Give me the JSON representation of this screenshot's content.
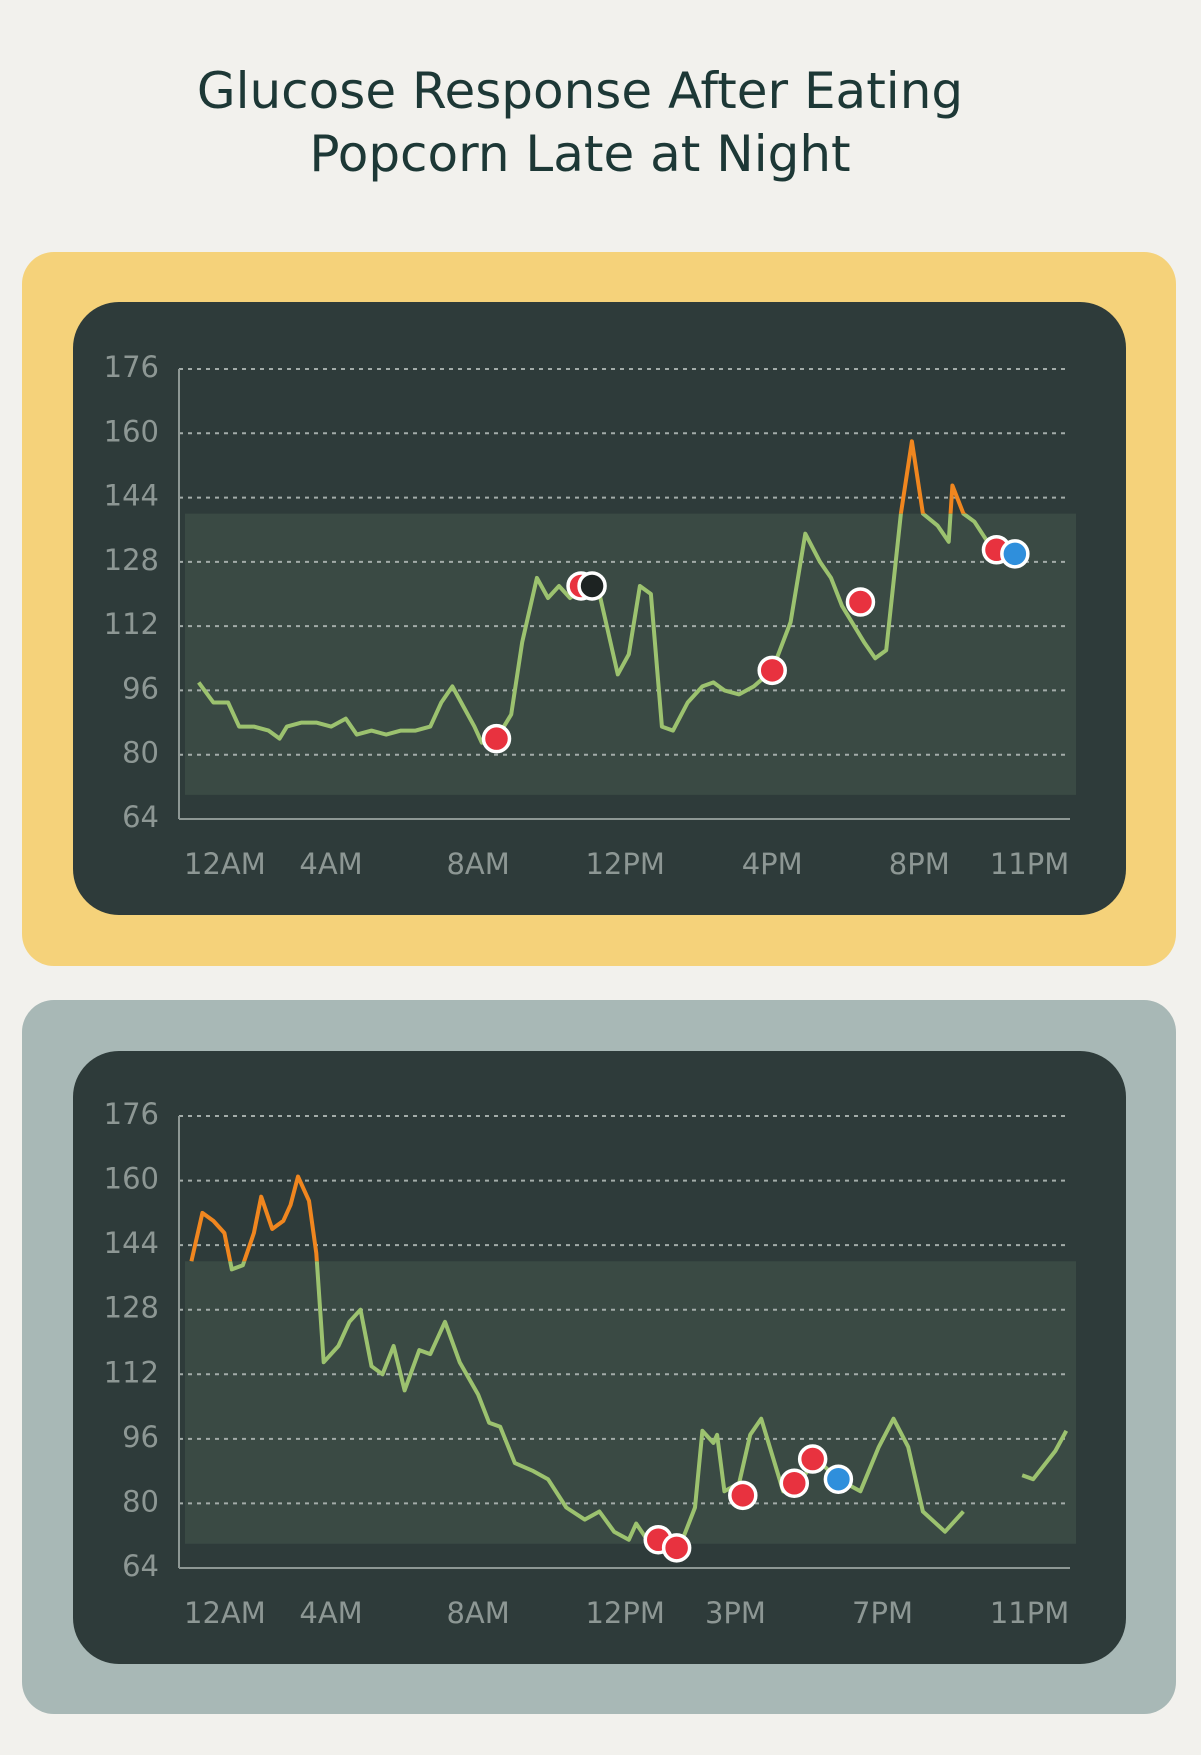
{
  "header": {
    "title_lines": [
      "Glucose Response After Eating",
      "Popcorn Late at Night"
    ]
  },
  "chart_data": [
    {
      "type": "line",
      "x": [
        0.4,
        0.8,
        1.2,
        1.5,
        1.9,
        2.3,
        2.6,
        2.8,
        3.2,
        3.6,
        4.0,
        4.4,
        4.7,
        5.1,
        5.5,
        5.9,
        6.3,
        6.7,
        7.0,
        7.3,
        7.6,
        7.9,
        8.1,
        8.5,
        8.9,
        9.2,
        9.6,
        9.9,
        10.2,
        10.5,
        10.8,
        11.2,
        11.5,
        11.8,
        12.1,
        12.4,
        12.7,
        13.0,
        13.3,
        13.7,
        14.1,
        14.4,
        14.7,
        15.1,
        15.5,
        16.0,
        16.5,
        16.9,
        17.3,
        17.6,
        17.9,
        18.5,
        18.8,
        19.1,
        19.5,
        19.8,
        20.1,
        20.5,
        20.8,
        20.9,
        21.2,
        21.5,
        22.0
      ],
      "values": [
        98,
        93,
        93,
        87,
        87,
        86,
        84,
        87,
        88,
        88,
        87,
        89,
        85,
        86,
        85,
        86,
        86,
        87,
        93,
        97,
        92,
        87,
        83,
        84,
        90,
        108,
        124,
        119,
        122,
        119,
        121,
        124,
        112,
        100,
        105,
        122,
        120,
        87,
        86,
        93,
        97,
        98,
        96,
        95,
        97,
        101,
        113,
        135,
        128,
        124,
        117,
        108,
        104,
        106,
        140,
        158,
        140,
        137,
        133,
        147,
        140,
        138,
        131
      ],
      "color": "#9cc26f",
      "high_color": "#f0861f",
      "high_threshold": 140,
      "target_range": [
        70,
        140
      ],
      "xlim": [
        0,
        24.1
      ],
      "xticks": [
        {
          "value": 0,
          "label": "12AM"
        },
        {
          "value": 4,
          "label": "4AM"
        },
        {
          "value": 8,
          "label": "8AM"
        },
        {
          "value": 12,
          "label": "12PM"
        },
        {
          "value": 16,
          "label": "4PM"
        },
        {
          "value": 20,
          "label": "8PM"
        },
        {
          "value": 23,
          "label": "11PM"
        }
      ],
      "ylim": [
        64,
        176
      ],
      "yticks": [
        64,
        80,
        96,
        112,
        128,
        144,
        160,
        176
      ],
      "grid": true,
      "markers": [
        {
          "x": 8.5,
          "y": 84,
          "color": "#e8323f"
        },
        {
          "x": 10.8,
          "y": 122,
          "color": "#e8323f"
        },
        {
          "x": 11.1,
          "y": 122,
          "color": "#1d2322"
        },
        {
          "x": 16.0,
          "y": 101,
          "color": "#e8323f"
        },
        {
          "x": 18.4,
          "y": 118,
          "color": "#e8323f"
        },
        {
          "x": 22.1,
          "y": 131,
          "color": "#e8323f"
        },
        {
          "x": 22.6,
          "y": 130,
          "color": "#2f8fdc"
        }
      ]
    },
    {
      "type": "line",
      "x": [
        0.2,
        0.5,
        0.8,
        1.1,
        1.3,
        1.6,
        1.9,
        2.1,
        2.4,
        2.7,
        2.9,
        3.1,
        3.4,
        3.6,
        3.8,
        4.2,
        4.5,
        4.8,
        5.1,
        5.4,
        5.7,
        6.0,
        6.4,
        6.7,
        7.1,
        7.5,
        8.0,
        8.3,
        8.6,
        9.0,
        9.5,
        9.9,
        10.4,
        10.9,
        11.3,
        11.7,
        12.1,
        12.3,
        12.6,
        12.9,
        13.2,
        13.6,
        13.9,
        14.1,
        14.4,
        14.5,
        14.7,
        15.1,
        15.4,
        15.7,
        16.0,
        16.3,
        16.8,
        17.2,
        17.8,
        18.4,
        18.9,
        19.3,
        19.7,
        20.1,
        20.7,
        21.2,
        21.8,
        22.8,
        23.1,
        23.7,
        24.0
      ],
      "values": [
        140,
        152,
        150,
        147,
        138,
        139,
        147,
        156,
        148,
        150,
        154,
        161,
        155,
        142,
        115,
        119,
        125,
        128,
        114,
        112,
        119,
        108,
        118,
        117,
        125,
        115,
        107,
        100,
        99,
        90,
        88,
        86,
        79,
        76,
        78,
        73,
        71,
        75,
        71,
        71,
        69,
        72,
        79,
        98,
        95,
        97,
        83,
        85,
        97,
        101,
        92,
        83,
        86,
        91,
        86,
        83,
        94,
        101,
        94,
        78,
        73,
        78,
        null,
        87,
        86,
        93,
        98
      ],
      "color": "#9cc26f",
      "high_color": "#f0861f",
      "high_threshold": 140,
      "target_range": [
        70,
        140
      ],
      "xlim": [
        0,
        24.1
      ],
      "xticks": [
        {
          "value": 0,
          "label": "12AM"
        },
        {
          "value": 4,
          "label": "4AM"
        },
        {
          "value": 8,
          "label": "8AM"
        },
        {
          "value": 12,
          "label": "12PM"
        },
        {
          "value": 15,
          "label": "3PM"
        },
        {
          "value": 19,
          "label": "7PM"
        },
        {
          "value": 23,
          "label": "11PM"
        }
      ],
      "ylim": [
        64,
        176
      ],
      "yticks": [
        64,
        80,
        96,
        112,
        128,
        144,
        160,
        176
      ],
      "grid": true,
      "markers": [
        {
          "x": 12.9,
          "y": 71,
          "color": "#e8323f"
        },
        {
          "x": 13.4,
          "y": 69,
          "color": "#e8323f"
        },
        {
          "x": 15.2,
          "y": 82,
          "color": "#e8323f"
        },
        {
          "x": 16.6,
          "y": 85,
          "color": "#e8323f"
        },
        {
          "x": 17.1,
          "y": 91,
          "color": "#e8323f"
        },
        {
          "x": 17.8,
          "y": 86,
          "color": "#2f8fdc"
        }
      ]
    }
  ]
}
